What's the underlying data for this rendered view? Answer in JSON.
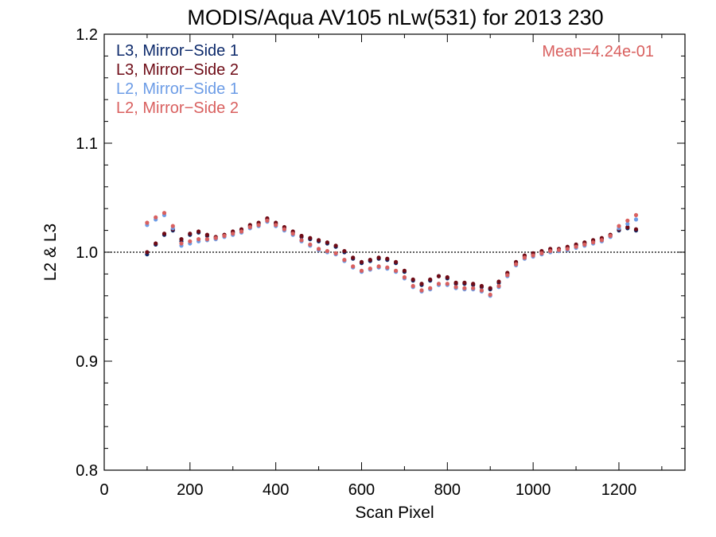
{
  "chart_data": {
    "type": "scatter",
    "title": "MODIS/Aqua AV105 nLw(531) for 2013 230",
    "xlabel": "Scan Pixel",
    "ylabel": "L2 & L3",
    "xlim": [
      0,
      1354
    ],
    "ylim": [
      0.8,
      1.2
    ],
    "x_ticks": [
      0,
      200,
      400,
      600,
      800,
      1000,
      1200
    ],
    "x_tick_labels": [
      "0",
      "200",
      "400",
      "600",
      "800",
      "1000",
      "1200"
    ],
    "y_ticks": [
      0.8,
      0.9,
      1.0,
      1.1,
      1.2
    ],
    "y_tick_labels": [
      "0.8",
      "0.9",
      "1.0",
      "1.1",
      "1.2"
    ],
    "reference_line": 1.0,
    "annotation": "Mean=4.24e-01",
    "annotation_color": "#d9605f",
    "legend_position": "top-left",
    "series": [
      {
        "name": "L3, Mirror−Side 1",
        "color": "#0d2a6b",
        "x": [
          100,
          120,
          140,
          160,
          180,
          200,
          220,
          240,
          260,
          280,
          300,
          320,
          340,
          360,
          380,
          400,
          420,
          440,
          460,
          480,
          500,
          520,
          540,
          560,
          580,
          600,
          620,
          640,
          660,
          680,
          700,
          720,
          740,
          760,
          780,
          800,
          820,
          840,
          860,
          880,
          900,
          920,
          940,
          960,
          980,
          1000,
          1020,
          1040,
          1060,
          1080,
          1100,
          1120,
          1140,
          1160,
          1180,
          1200,
          1220,
          1240
        ],
        "y": [
          0.998,
          1.007,
          1.016,
          1.02,
          1.01,
          1.016,
          1.018,
          1.015,
          1.013,
          1.015,
          1.018,
          1.02,
          1.024,
          1.026,
          1.03,
          1.026,
          1.022,
          1.018,
          1.014,
          1.012,
          1.01,
          1.008,
          1.005,
          1.0,
          0.994,
          0.99,
          0.992,
          0.994,
          0.993,
          0.99,
          0.982,
          0.974,
          0.97,
          0.974,
          0.978,
          0.976,
          0.971,
          0.971,
          0.97,
          0.968,
          0.966,
          0.972,
          0.98,
          0.99,
          0.996,
          0.998,
          1.0,
          1.002,
          1.002,
          1.004,
          1.006,
          1.008,
          1.01,
          1.012,
          1.015,
          1.02,
          1.022,
          1.02
        ]
      },
      {
        "name": "L3, Mirror−Side 2",
        "color": "#6e0b16",
        "x": [
          100,
          120,
          140,
          160,
          180,
          200,
          220,
          240,
          260,
          280,
          300,
          320,
          340,
          360,
          380,
          400,
          420,
          440,
          460,
          480,
          500,
          520,
          540,
          560,
          580,
          600,
          620,
          640,
          660,
          680,
          700,
          720,
          740,
          760,
          780,
          800,
          820,
          840,
          860,
          880,
          900,
          920,
          940,
          960,
          980,
          1000,
          1020,
          1040,
          1060,
          1080,
          1100,
          1120,
          1140,
          1160,
          1180,
          1200,
          1220,
          1240
        ],
        "y": [
          1.0,
          1.008,
          1.017,
          1.021,
          1.012,
          1.017,
          1.019,
          1.016,
          1.014,
          1.016,
          1.019,
          1.021,
          1.025,
          1.027,
          1.031,
          1.027,
          1.023,
          1.019,
          1.015,
          1.013,
          1.011,
          1.009,
          1.006,
          1.001,
          0.995,
          0.991,
          0.993,
          0.995,
          0.994,
          0.991,
          0.983,
          0.975,
          0.971,
          0.975,
          0.978,
          0.977,
          0.972,
          0.972,
          0.971,
          0.969,
          0.967,
          0.973,
          0.981,
          0.991,
          0.997,
          0.999,
          1.001,
          1.003,
          1.003,
          1.005,
          1.007,
          1.009,
          1.011,
          1.013,
          1.016,
          1.021,
          1.023,
          1.021
        ]
      },
      {
        "name": "L2, Mirror−Side 1",
        "color": "#6c9ce6",
        "x": [
          100,
          120,
          140,
          160,
          180,
          200,
          220,
          240,
          260,
          280,
          300,
          320,
          340,
          360,
          380,
          400,
          420,
          440,
          460,
          480,
          500,
          520,
          540,
          560,
          580,
          600,
          620,
          640,
          660,
          680,
          700,
          720,
          740,
          760,
          780,
          800,
          820,
          840,
          860,
          880,
          900,
          920,
          940,
          960,
          980,
          1000,
          1020,
          1040,
          1060,
          1080,
          1100,
          1120,
          1140,
          1160,
          1180,
          1200,
          1220,
          1240
        ],
        "y": [
          1.025,
          1.03,
          1.034,
          1.022,
          1.006,
          1.008,
          1.01,
          1.011,
          1.012,
          1.014,
          1.016,
          1.018,
          1.022,
          1.024,
          1.028,
          1.024,
          1.02,
          1.016,
          1.01,
          1.006,
          1.002,
          1.0,
          0.998,
          0.992,
          0.986,
          0.982,
          0.984,
          0.986,
          0.985,
          0.982,
          0.976,
          0.968,
          0.964,
          0.966,
          0.97,
          0.97,
          0.967,
          0.966,
          0.966,
          0.964,
          0.96,
          0.968,
          0.978,
          0.988,
          0.994,
          0.996,
          0.998,
          1.0,
          1.001,
          1.002,
          1.004,
          1.006,
          1.008,
          1.01,
          1.014,
          1.022,
          1.026,
          1.03
        ]
      },
      {
        "name": "L2, Mirror−Side 2",
        "color": "#d9605f",
        "x": [
          100,
          120,
          140,
          160,
          180,
          200,
          220,
          240,
          260,
          280,
          300,
          320,
          340,
          360,
          380,
          400,
          420,
          440,
          460,
          480,
          500,
          520,
          540,
          560,
          580,
          600,
          620,
          640,
          660,
          680,
          700,
          720,
          740,
          760,
          780,
          800,
          820,
          840,
          860,
          880,
          900,
          920,
          940,
          960,
          980,
          1000,
          1020,
          1040,
          1060,
          1080,
          1100,
          1120,
          1140,
          1160,
          1180,
          1200,
          1220,
          1240
        ],
        "y": [
          1.027,
          1.032,
          1.036,
          1.024,
          1.008,
          1.01,
          1.012,
          1.012,
          1.013,
          1.015,
          1.017,
          1.019,
          1.023,
          1.025,
          1.029,
          1.025,
          1.021,
          1.017,
          1.011,
          1.007,
          1.003,
          1.001,
          0.999,
          0.993,
          0.987,
          0.983,
          0.985,
          0.987,
          0.986,
          0.983,
          0.977,
          0.969,
          0.965,
          0.967,
          0.971,
          0.971,
          0.968,
          0.967,
          0.967,
          0.965,
          0.961,
          0.969,
          0.979,
          0.989,
          0.995,
          0.997,
          0.999,
          1.001,
          1.002,
          1.003,
          1.005,
          1.007,
          1.009,
          1.011,
          1.015,
          1.024,
          1.029,
          1.034
        ]
      }
    ]
  }
}
